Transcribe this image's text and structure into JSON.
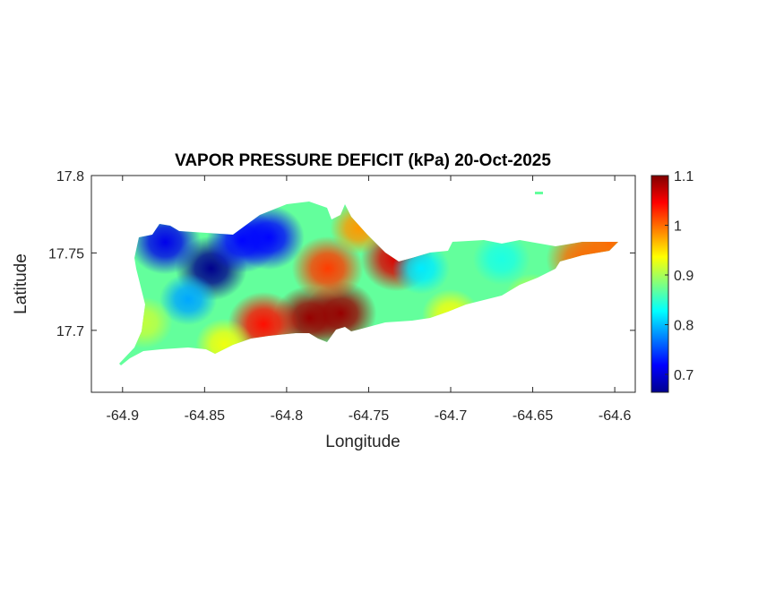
{
  "chart_data": {
    "type": "heatmap",
    "title": "VAPOR PRESSURE DEFICIT (kPa) 20-Oct-2025",
    "xlabel": "Longitude",
    "ylabel": "Latitude",
    "xlim": [
      -64.919,
      -64.5875
    ],
    "ylim": [
      17.66,
      17.8
    ],
    "xticks": [
      -64.9,
      -64.85,
      -64.8,
      -64.75,
      -64.7,
      -64.65,
      -64.6
    ],
    "xtick_labels": [
      "-64.9",
      "-64.85",
      "-64.8",
      "-64.75",
      "-64.7",
      "-64.65",
      "-64.6"
    ],
    "yticks": [
      17.7,
      17.75,
      17.8
    ],
    "ytick_labels": [
      "17.7",
      "17.75",
      "17.8"
    ],
    "colormap": "jet",
    "colorbar": {
      "location": "right",
      "clim": [
        0.664,
        1.1
      ],
      "ticks": [
        0.7,
        0.8,
        0.9,
        1.0,
        1.1
      ],
      "tick_labels": [
        "0.7",
        "0.8",
        "0.9",
        "1",
        "1.1"
      ]
    },
    "grid": false,
    "background_value": 0.87,
    "field_points": [
      {
        "lon": -64.846,
        "lat": 17.74,
        "value": 0.67
      },
      {
        "lon": -64.874,
        "lat": 17.757,
        "value": 0.71
      },
      {
        "lon": -64.827,
        "lat": 17.758,
        "value": 0.72
      },
      {
        "lon": -64.811,
        "lat": 17.76,
        "value": 0.72
      },
      {
        "lon": -64.86,
        "lat": 17.72,
        "value": 0.79
      },
      {
        "lon": -64.786,
        "lat": 17.708,
        "value": 1.09
      },
      {
        "lon": -64.767,
        "lat": 17.711,
        "value": 1.09
      },
      {
        "lon": -64.775,
        "lat": 17.74,
        "value": 1.02
      },
      {
        "lon": -64.814,
        "lat": 17.704,
        "value": 1.04
      },
      {
        "lon": -64.733,
        "lat": 17.746,
        "value": 1.06
      },
      {
        "lon": -64.62,
        "lat": 17.746,
        "value": 1.0
      },
      {
        "lon": -64.603,
        "lat": 17.756,
        "value": 1.0
      },
      {
        "lon": -64.756,
        "lat": 17.766,
        "value": 0.98
      },
      {
        "lon": -64.718,
        "lat": 17.74,
        "value": 0.82
      },
      {
        "lon": -64.669,
        "lat": 17.746,
        "value": 0.84
      },
      {
        "lon": -64.838,
        "lat": 17.691,
        "value": 0.93
      },
      {
        "lon": -64.887,
        "lat": 17.705,
        "value": 0.91
      },
      {
        "lon": -64.7,
        "lat": 17.71,
        "value": 0.93
      },
      {
        "lon": -64.65,
        "lat": 17.72,
        "value": 0.92
      },
      {
        "lon": -64.623,
        "lat": 17.787,
        "value": 0.83
      }
    ]
  }
}
